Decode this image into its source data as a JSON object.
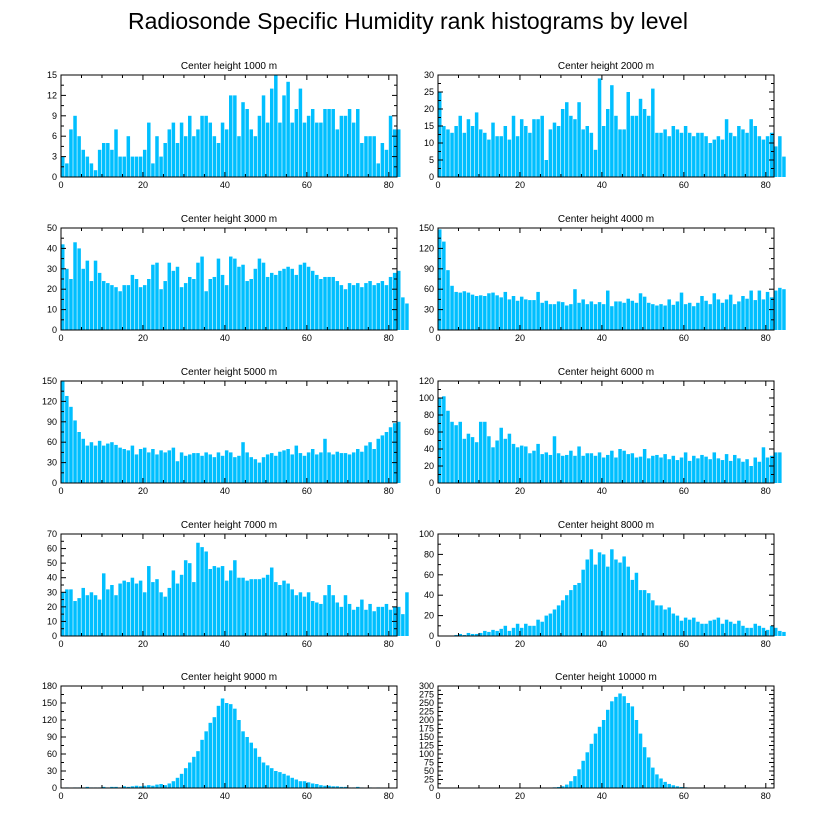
{
  "figure": {
    "title": "Radiosonde Specific Humidity rank histograms by level",
    "bar_color": "#00bfff"
  },
  "chart_data": [
    {
      "type": "bar",
      "title": "Center height 1000 m",
      "xlim": [
        0,
        82
      ],
      "ylim": [
        0,
        15
      ],
      "xticks": [
        0,
        20,
        40,
        60,
        80
      ],
      "yticks": [
        0,
        3,
        6,
        9,
        12,
        15
      ],
      "values": [
        3,
        2,
        7,
        9,
        6,
        4,
        3,
        2,
        1,
        4,
        5,
        5,
        4,
        7,
        3,
        3,
        6,
        3,
        3,
        3,
        4,
        8,
        2,
        6,
        3,
        5,
        7,
        8,
        5,
        8,
        6,
        9,
        6,
        7,
        9,
        9,
        8,
        6,
        5,
        8,
        7,
        12,
        12,
        6,
        11,
        10,
        7,
        6,
        9,
        12,
        8,
        13,
        15,
        8,
        12,
        14,
        8,
        10,
        13,
        8,
        9,
        10,
        8,
        8,
        10,
        10,
        10,
        7,
        9,
        9,
        10,
        8,
        10,
        5,
        6,
        6,
        6,
        2,
        5,
        4,
        9,
        7,
        7
      ]
    },
    {
      "type": "bar",
      "title": "Center height 2000 m",
      "xlim": [
        0,
        82
      ],
      "ylim": [
        0,
        30
      ],
      "xticks": [
        0,
        20,
        40,
        60,
        80
      ],
      "yticks": [
        0,
        5,
        10,
        15,
        20,
        25,
        30
      ],
      "values": [
        25,
        15,
        14,
        13,
        15,
        18,
        13,
        17,
        15,
        19,
        14,
        13,
        11,
        16,
        12,
        12,
        15,
        11,
        18,
        12,
        17,
        15,
        13,
        17,
        17,
        18,
        5,
        14,
        16,
        15,
        20,
        22,
        18,
        17,
        22,
        14,
        15,
        13,
        8,
        29,
        15,
        20,
        27,
        18,
        14,
        14,
        25,
        18,
        18,
        23,
        20,
        18,
        26,
        13,
        13,
        14,
        12,
        15,
        14,
        13,
        15,
        13,
        12,
        13,
        13,
        12,
        10,
        11,
        12,
        11,
        17,
        13,
        12,
        15,
        14,
        13,
        17,
        15,
        12,
        11,
        12,
        13,
        9,
        12,
        6
      ]
    },
    {
      "type": "bar",
      "title": "Center height 3000 m",
      "xlim": [
        0,
        82
      ],
      "ylim": [
        0,
        50
      ],
      "xticks": [
        0,
        20,
        40,
        60,
        80
      ],
      "yticks": [
        0,
        10,
        20,
        30,
        40,
        50
      ],
      "values": [
        42,
        30,
        25,
        43,
        40,
        30,
        34,
        24,
        34,
        28,
        24,
        23,
        22,
        21,
        19,
        22,
        22,
        27,
        25,
        21,
        22,
        25,
        32,
        33,
        20,
        24,
        33,
        29,
        31,
        21,
        23,
        26,
        25,
        33,
        36,
        19,
        25,
        26,
        35,
        27,
        22,
        36,
        35,
        31,
        32,
        24,
        25,
        30,
        35,
        33,
        26,
        28,
        27,
        29,
        30,
        31,
        30,
        27,
        32,
        33,
        31,
        29,
        27,
        25,
        26,
        26,
        26,
        24,
        22,
        20,
        23,
        22,
        23,
        21,
        23,
        24,
        22,
        23,
        24,
        22,
        26,
        28,
        29,
        16,
        13
      ]
    },
    {
      "type": "bar",
      "title": "Center height 4000 m",
      "xlim": [
        0,
        82
      ],
      "ylim": [
        0,
        150
      ],
      "xticks": [
        0,
        20,
        40,
        60,
        80
      ],
      "yticks": [
        0,
        30,
        60,
        90,
        120,
        150
      ],
      "values": [
        148,
        130,
        88,
        65,
        56,
        55,
        57,
        55,
        52,
        50,
        51,
        50,
        54,
        55,
        51,
        48,
        56,
        45,
        50,
        43,
        49,
        45,
        44,
        44,
        56,
        40,
        43,
        38,
        38,
        42,
        41,
        36,
        38,
        60,
        40,
        45,
        38,
        42,
        38,
        41,
        38,
        58,
        35,
        42,
        42,
        40,
        46,
        43,
        40,
        54,
        49,
        40,
        38,
        36,
        38,
        36,
        45,
        37,
        42,
        55,
        38,
        40,
        35,
        40,
        50,
        43,
        38,
        54,
        45,
        40,
        45,
        52,
        38,
        42,
        50,
        46,
        58,
        44,
        58,
        45,
        56,
        48,
        58,
        62,
        60
      ]
    },
    {
      "type": "bar",
      "title": "Center height 5000 m",
      "xlim": [
        0,
        82
      ],
      "ylim": [
        0,
        150
      ],
      "xticks": [
        0,
        20,
        40,
        60,
        80
      ],
      "yticks": [
        0,
        30,
        60,
        90,
        120,
        150
      ],
      "values": [
        150,
        128,
        112,
        92,
        75,
        65,
        55,
        60,
        55,
        62,
        55,
        58,
        60,
        56,
        52,
        50,
        48,
        55,
        42,
        50,
        52,
        45,
        50,
        42,
        48,
        45,
        48,
        52,
        32,
        45,
        40,
        42,
        44,
        44,
        40,
        45,
        42,
        38,
        45,
        40,
        48,
        45,
        38,
        40,
        60,
        45,
        38,
        35,
        30,
        38,
        42,
        44,
        40,
        46,
        48,
        50,
        42,
        55,
        44,
        40,
        45,
        50,
        42,
        45,
        65,
        45,
        42,
        46,
        44,
        44,
        42,
        45,
        50,
        46,
        55,
        60,
        50,
        65,
        70,
        75,
        82,
        88,
        90
      ]
    },
    {
      "type": "bar",
      "title": "Center height 6000 m",
      "xlim": [
        0,
        82
      ],
      "ylim": [
        0,
        120
      ],
      "xticks": [
        0,
        20,
        40,
        60,
        80
      ],
      "yticks": [
        0,
        20,
        40,
        60,
        80,
        100,
        120
      ],
      "values": [
        100,
        102,
        85,
        72,
        68,
        72,
        52,
        58,
        54,
        48,
        72,
        72,
        55,
        42,
        50,
        65,
        52,
        58,
        46,
        42,
        44,
        43,
        35,
        38,
        46,
        34,
        36,
        33,
        55,
        35,
        32,
        33,
        38,
        32,
        43,
        32,
        35,
        35,
        32,
        36,
        30,
        33,
        38,
        30,
        40,
        38,
        34,
        35,
        30,
        31,
        40,
        29,
        32,
        33,
        30,
        34,
        28,
        32,
        27,
        30,
        36,
        26,
        32,
        29,
        33,
        31,
        28,
        36,
        29,
        27,
        34,
        26,
        33,
        29,
        25,
        28,
        20,
        30,
        25,
        42,
        30,
        32,
        36,
        36
      ]
    },
    {
      "type": "bar",
      "title": "Center height 7000 m",
      "xlim": [
        0,
        82
      ],
      "ylim": [
        0,
        70
      ],
      "xticks": [
        0,
        20,
        40,
        60,
        80
      ],
      "yticks": [
        0,
        10,
        20,
        30,
        40,
        50,
        60,
        70
      ],
      "values": [
        30,
        32,
        32,
        24,
        26,
        33,
        28,
        30,
        28,
        25,
        43,
        32,
        35,
        28,
        36,
        38,
        37,
        40,
        36,
        38,
        30,
        48,
        37,
        39,
        30,
        27,
        33,
        45,
        36,
        42,
        52,
        50,
        37,
        64,
        61,
        58,
        46,
        48,
        47,
        48,
        38,
        45,
        52,
        40,
        40,
        38,
        39,
        39,
        39,
        40,
        42,
        47,
        37,
        35,
        38,
        36,
        32,
        28,
        30,
        27,
        30,
        24,
        23,
        22,
        28,
        35,
        28,
        23,
        20,
        28,
        22,
        18,
        20,
        25,
        18,
        22,
        17,
        20,
        20,
        22,
        18,
        20,
        20,
        15,
        30
      ]
    },
    {
      "type": "bar",
      "title": "Center height 8000 m",
      "xlim": [
        0,
        82
      ],
      "ylim": [
        0,
        100
      ],
      "xticks": [
        0,
        20,
        40,
        60,
        80
      ],
      "yticks": [
        0,
        20,
        40,
        60,
        80,
        100
      ],
      "values": [
        0,
        0,
        0,
        0,
        1,
        2,
        1,
        3,
        2,
        2,
        3,
        5,
        4,
        6,
        5,
        7,
        10,
        5,
        8,
        12,
        8,
        12,
        10,
        10,
        16,
        14,
        20,
        22,
        26,
        30,
        35,
        40,
        45,
        50,
        52,
        65,
        75,
        85,
        70,
        82,
        80,
        68,
        85,
        75,
        72,
        78,
        68,
        55,
        62,
        45,
        45,
        42,
        35,
        30,
        30,
        26,
        28,
        22,
        20,
        15,
        18,
        16,
        18,
        14,
        12,
        12,
        15,
        16,
        18,
        12,
        16,
        14,
        12,
        15,
        10,
        8,
        8,
        12,
        10,
        8,
        6,
        10,
        8,
        5,
        4
      ]
    },
    {
      "type": "bar",
      "title": "Center height 9000 m",
      "xlim": [
        0,
        82
      ],
      "ylim": [
        0,
        180
      ],
      "xticks": [
        0,
        20,
        40,
        60,
        80
      ],
      "yticks": [
        0,
        30,
        60,
        90,
        120,
        150,
        180
      ],
      "values": [
        0,
        1,
        0,
        1,
        1,
        1,
        2,
        1,
        1,
        1,
        2,
        1,
        2,
        2,
        1,
        3,
        2,
        3,
        4,
        3,
        4,
        5,
        4,
        6,
        7,
        5,
        8,
        12,
        18,
        25,
        35,
        45,
        55,
        65,
        85,
        100,
        115,
        125,
        145,
        158,
        150,
        148,
        140,
        120,
        100,
        90,
        80,
        70,
        55,
        45,
        40,
        35,
        30,
        28,
        25,
        22,
        18,
        15,
        12,
        12,
        10,
        8,
        7,
        5,
        4,
        4,
        3,
        3,
        2,
        2,
        1,
        1,
        2,
        1,
        0,
        1,
        0,
        1,
        0
      ]
    },
    {
      "type": "bar",
      "title": "Center height 10000 m",
      "xlim": [
        0,
        82
      ],
      "ylim": [
        0,
        300
      ],
      "xticks": [
        0,
        20,
        40,
        60,
        80
      ],
      "yticks": [
        0,
        25,
        50,
        75,
        100,
        125,
        150,
        175,
        200,
        225,
        250,
        275,
        300
      ],
      "values": [
        0,
        0,
        0,
        0,
        0,
        0,
        0,
        0,
        0,
        0,
        0,
        0,
        0,
        0,
        0,
        0,
        0,
        0,
        0,
        0,
        0,
        0,
        0,
        0,
        0,
        0,
        1,
        1,
        2,
        3,
        5,
        10,
        20,
        35,
        55,
        80,
        105,
        130,
        160,
        180,
        200,
        230,
        255,
        268,
        278,
        270,
        250,
        240,
        200,
        160,
        120,
        90,
        60,
        40,
        28,
        18,
        12,
        8,
        5,
        3,
        2,
        1,
        1,
        0,
        0,
        0,
        0,
        0,
        0,
        0,
        0,
        0,
        0,
        0,
        0,
        0,
        0,
        0,
        0,
        0,
        0,
        0
      ]
    }
  ]
}
